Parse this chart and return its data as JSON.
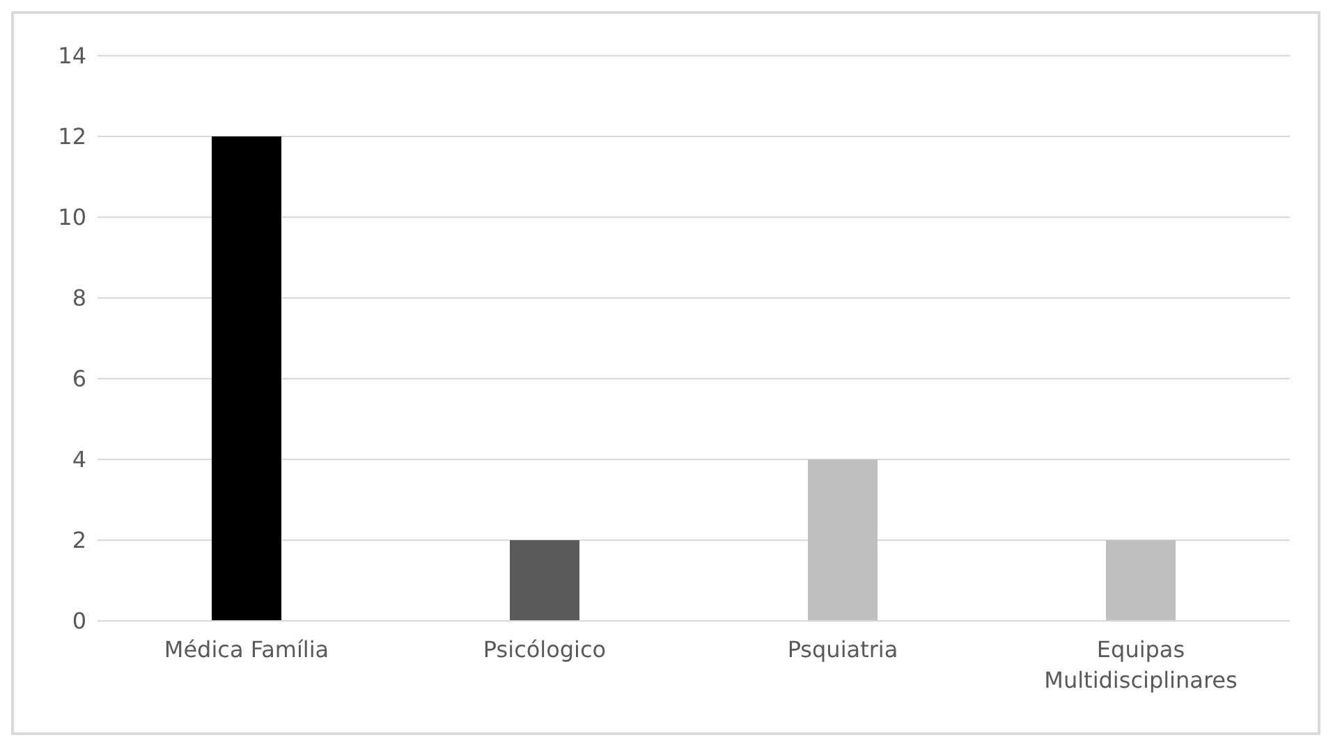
{
  "chart_data": {
    "type": "bar",
    "categories": [
      "Médica Família",
      "Psicólogico",
      "Psquiatria",
      "Equipas Multidisciplinares"
    ],
    "values": [
      12,
      2,
      4,
      2
    ],
    "colors": [
      "#000000",
      "#595959",
      "#bfbfbf",
      "#bfbfbf"
    ],
    "ylim": [
      0,
      14
    ],
    "yticks": [
      0,
      2,
      4,
      6,
      8,
      10,
      12,
      14
    ],
    "grid": "y",
    "legend": false
  }
}
